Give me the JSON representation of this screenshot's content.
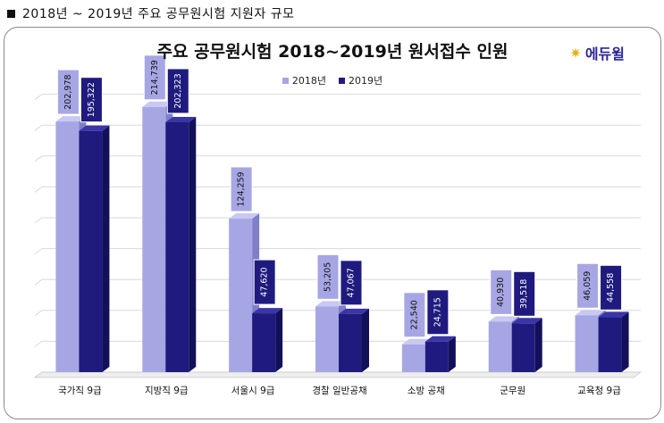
{
  "heading": {
    "text": "2018년 ~ 2019년 주요 공무원시험 지원자 규모"
  },
  "logo": {
    "text": "에듀윌"
  },
  "colors": {
    "series_2018": "#a7a6e4",
    "series_2019": "#1f1b7e"
  },
  "chart_data": {
    "type": "bar",
    "title": "주요 공무원시험 2018~2019년 원서접수 인원",
    "xlabel": "",
    "ylabel": "",
    "ylim": [
      0,
      250000
    ],
    "grid": true,
    "legend": "top-center",
    "categories": [
      "국가직 9급",
      "지방직 9급",
      "서울시 9급",
      "경찰 일반공채",
      "소방 공채",
      "군무원",
      "교육청 9급"
    ],
    "series": [
      {
        "name": "2018년",
        "values": [
          202978,
          214739,
          124259,
          53205,
          22540,
          40930,
          46059
        ],
        "labels": [
          "202,978",
          "214,739",
          "124,259",
          "53,205",
          "22,540",
          "40,930",
          "46,059"
        ]
      },
      {
        "name": "2019년",
        "values": [
          195322,
          202323,
          47620,
          47067,
          24715,
          39518,
          44558
        ],
        "labels": [
          "195,322",
          "202,323",
          "47,620",
          "47,067",
          "24,715",
          "39,518",
          "44,558"
        ]
      }
    ]
  }
}
